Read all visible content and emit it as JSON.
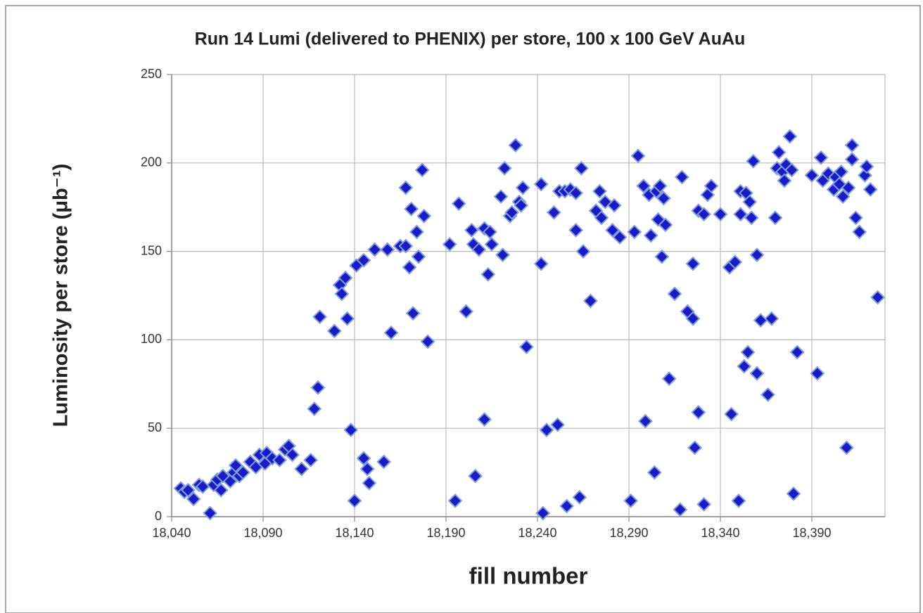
{
  "chart_data": {
    "type": "scatter",
    "title": "Run 14 Lumi (delivered to PHENIX) per store, 100 x 100 GeV AuAu",
    "x_label": "fill number",
    "y_label": "Luminosity per store (μb⁻¹)",
    "color": "#1a1ac8",
    "grid": true,
    "xlim": [
      18040,
      18430
    ],
    "ylim": [
      0,
      250
    ],
    "xticks": [
      {
        "value": 18040,
        "label": "18,040"
      },
      {
        "value": 18090,
        "label": "18,090"
      },
      {
        "value": 18140,
        "label": "18,140"
      },
      {
        "value": 18190,
        "label": "18,190"
      },
      {
        "value": 18240,
        "label": "18,240"
      },
      {
        "value": 18290,
        "label": "18,290"
      },
      {
        "value": 18340,
        "label": "18,340"
      },
      {
        "value": 18390,
        "label": "18,390"
      }
    ],
    "yticks": [
      0,
      50,
      100,
      150,
      200,
      250
    ],
    "x": [
      18045,
      18047,
      18049,
      18052,
      18055,
      18057,
      18061,
      18063,
      18065,
      18067,
      18068,
      18072,
      18074,
      18075,
      18077,
      18079,
      18083,
      18086,
      18088,
      18091,
      18092,
      18095,
      18099,
      18102,
      18104,
      18106,
      18111,
      18116,
      18118,
      18120,
      18121,
      18129,
      18132,
      18133,
      18135,
      18136,
      18138,
      18140,
      18141,
      18145,
      18145,
      18147,
      18148,
      18151,
      18156,
      18158,
      18160,
      18165,
      18168,
      18168,
      18170,
      18171,
      18172,
      18174,
      18175,
      18177,
      18178,
      18180,
      18192,
      18195,
      18197,
      18201,
      18204,
      18205,
      18206,
      18208,
      18211,
      18211,
      18213,
      18215,
      18214,
      18220,
      18221,
      18222,
      18225,
      18226,
      18228,
      18230,
      18231,
      18232,
      18234,
      18242,
      18242,
      18243,
      18245,
      18249,
      18251,
      18252,
      18255,
      18256,
      18258,
      18261,
      18261,
      18263,
      18264,
      18265,
      18269,
      18272,
      18274,
      18275,
      18277,
      18281,
      18282,
      18285,
      18291,
      18293,
      18295,
      18298,
      18299,
      18301,
      18302,
      18304,
      18305,
      18306,
      18307,
      18308,
      18309,
      18310,
      18312,
      18315,
      18318,
      18319,
      18322,
      18325,
      18325,
      18326,
      18328,
      18328,
      18331,
      18331,
      18333,
      18335,
      18340,
      18345,
      18346,
      18348,
      18350,
      18351,
      18351,
      18353,
      18354,
      18355,
      18356,
      18357,
      18358,
      18360,
      18360,
      18362,
      18366,
      18368,
      18370,
      18371,
      18372,
      18374,
      18375,
      18376,
      18378,
      18379,
      18380,
      18382,
      18390,
      18393,
      18395,
      18396,
      18399,
      18402,
      18403,
      18405,
      18406,
      18407,
      18409,
      18410,
      18412,
      18412,
      18414,
      18416,
      18419,
      18420,
      18422,
      18426
    ],
    "values": [
      16,
      14,
      15,
      10,
      18,
      17,
      2,
      18,
      21,
      15,
      23,
      20,
      25,
      29,
      23,
      25,
      31,
      28,
      35,
      30,
      36,
      33,
      32,
      38,
      40,
      35,
      27,
      32,
      61,
      73,
      113,
      105,
      131,
      126,
      135,
      112,
      49,
      9,
      142,
      145,
      33,
      27,
      19,
      151,
      31,
      151,
      104,
      153,
      153,
      186,
      141,
      174,
      115,
      161,
      147,
      196,
      170,
      99,
      154,
      9,
      177,
      116,
      162,
      154,
      23,
      151,
      55,
      163,
      137,
      154,
      161,
      181,
      148,
      197,
      170,
      172,
      210,
      178,
      176,
      186,
      96,
      143,
      188,
      2,
      49,
      172,
      52,
      184,
      184,
      6,
      185,
      183,
      162,
      11,
      197,
      150,
      122,
      173,
      184,
      169,
      178,
      162,
      176,
      158,
      9,
      161,
      204,
      187,
      54,
      182,
      159,
      25,
      184,
      168,
      187,
      147,
      180,
      165,
      78,
      126,
      4,
      192,
      116,
      112,
      143,
      39,
      59,
      173,
      7,
      171,
      182,
      187,
      171,
      141,
      58,
      144,
      9,
      171,
      184,
      85,
      183,
      93,
      178,
      169,
      201,
      148,
      81,
      111,
      69,
      112,
      169,
      197,
      206,
      195,
      190,
      199,
      215,
      196,
      13,
      93,
      193,
      81,
      203,
      190,
      194,
      185,
      192,
      188,
      195,
      181,
      39,
      186,
      202,
      210,
      169,
      161,
      193,
      198,
      185,
      124
    ]
  }
}
